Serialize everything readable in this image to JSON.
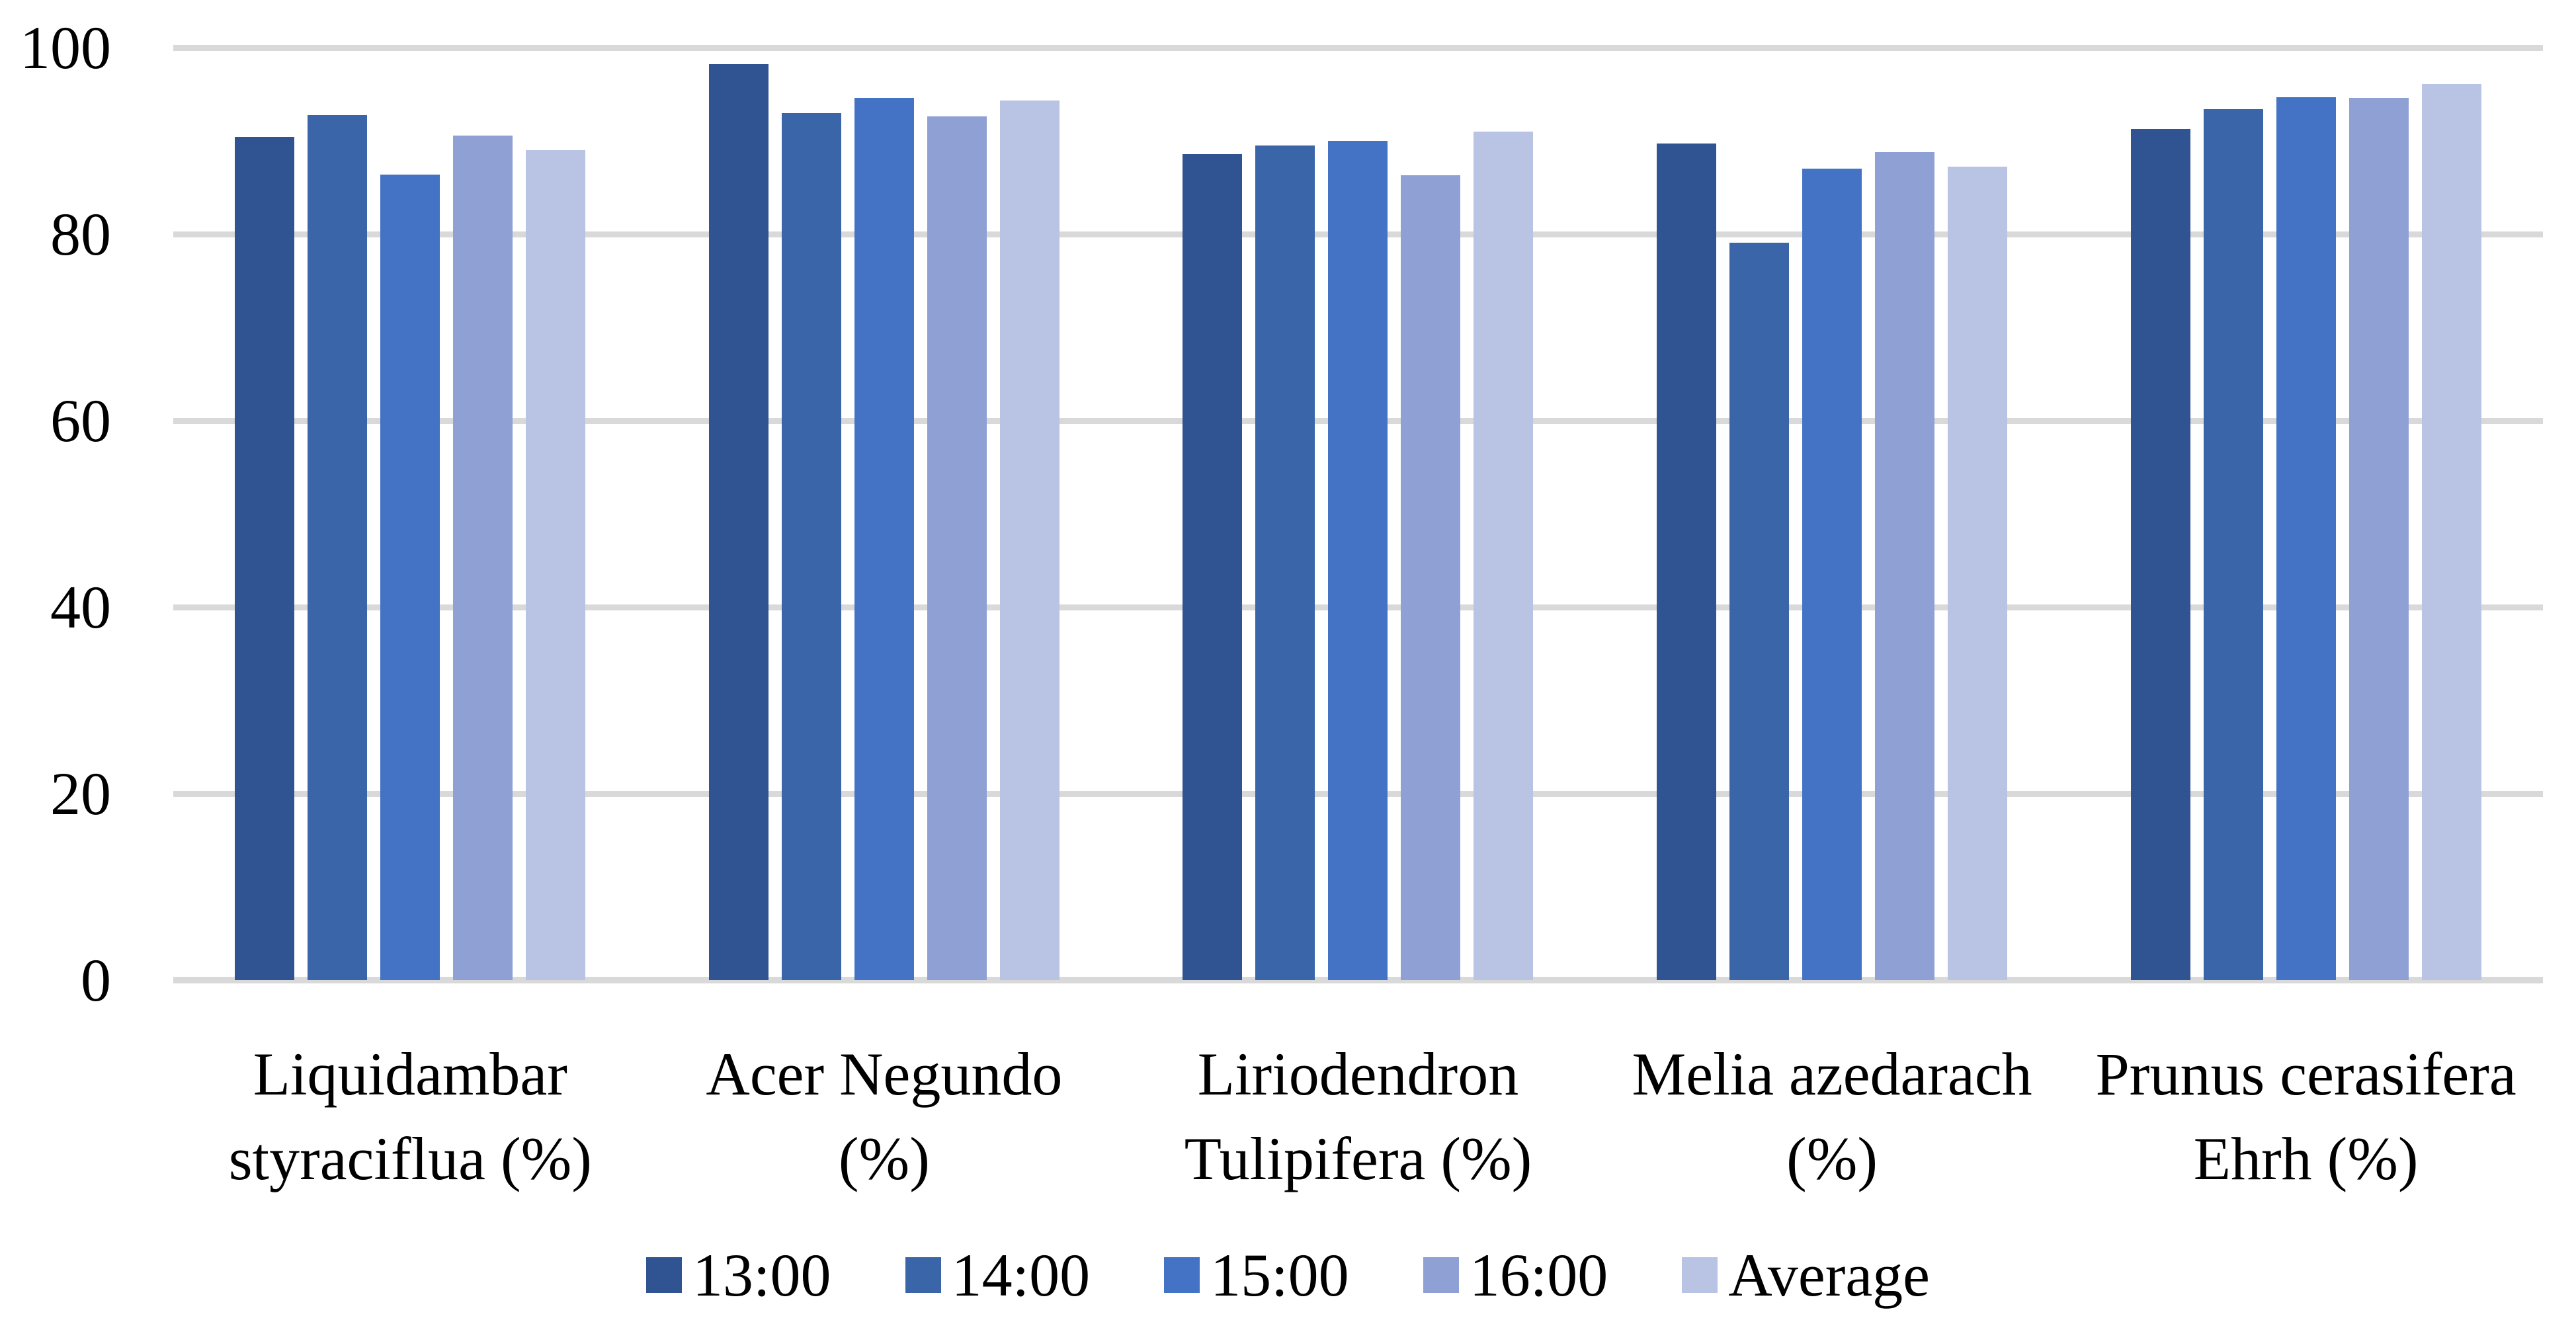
{
  "figure": {
    "background": "#ffffff",
    "gridline_color": "#D9D9D9",
    "text_color": "#000000"
  },
  "chart_data": {
    "type": "bar",
    "title": "",
    "xlabel": "",
    "ylabel": "",
    "ylim": [
      0,
      100
    ],
    "ytick_interval": 20,
    "yticks": [
      0,
      20,
      40,
      60,
      80,
      100
    ],
    "grid": "horizontal",
    "legend_position": "bottom-center",
    "categories": [
      "Liquidambar styraciflua (%)",
      "Acer Negundo (%)",
      "Liriodendron Tulipifera (%)",
      "Melia azedarach (%)",
      "Prunus cerasifera Ehrh (%)"
    ],
    "category_label_lines": [
      [
        "Liquidambar",
        "styraciflua (%)"
      ],
      [
        "Acer Negundo",
        "(%)"
      ],
      [
        "Liriodendron",
        "Tulipifera (%)"
      ],
      [
        "Melia azedarach",
        "(%)"
      ],
      [
        "Prunus cerasifera",
        "Ehrh (%)"
      ]
    ],
    "series": [
      {
        "name": "13:00",
        "color": "#2F5491",
        "values": [
          90.4,
          98.2,
          88.6,
          89.7,
          91.3
        ]
      },
      {
        "name": "14:00",
        "color": "#3A66A9",
        "values": [
          92.8,
          93.0,
          89.5,
          79.1,
          93.4
        ]
      },
      {
        "name": "15:00",
        "color": "#4473C5",
        "values": [
          86.4,
          94.6,
          90.0,
          87.0,
          94.7
        ]
      },
      {
        "name": "16:00",
        "color": "#8FA0D4",
        "values": [
          90.6,
          92.6,
          86.3,
          88.8,
          94.6
        ]
      },
      {
        "name": "Average",
        "color": "#B9C3E4",
        "values": [
          89.0,
          94.3,
          91.0,
          87.2,
          96.1
        ]
      }
    ]
  }
}
